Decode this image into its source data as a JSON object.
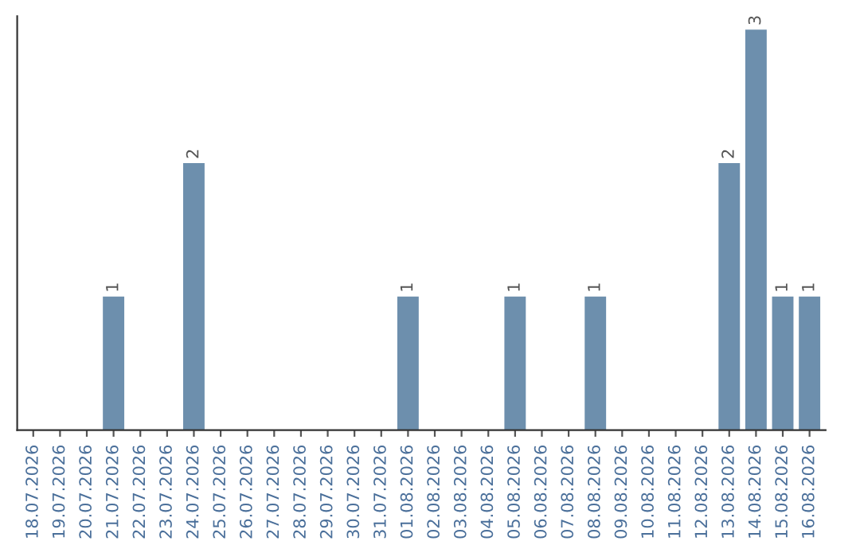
{
  "chart_data": {
    "type": "bar",
    "categories": [
      "18.07.2026",
      "19.07.2026",
      "20.07.2026",
      "21.07.2026",
      "22.07.2026",
      "23.07.2026",
      "24.07.2026",
      "25.07.2026",
      "26.07.2026",
      "27.07.2026",
      "28.07.2026",
      "29.07.2026",
      "30.07.2026",
      "31.07.2026",
      "01.08.2026",
      "02.08.2026",
      "03.08.2026",
      "04.08.2026",
      "05.08.2026",
      "06.08.2026",
      "07.08.2026",
      "08.08.2026",
      "09.08.2026",
      "10.08.2026",
      "11.08.2026",
      "12.08.2026",
      "13.08.2026",
      "14.08.2026",
      "15.08.2026",
      "16.08.2026"
    ],
    "values": [
      0,
      0,
      0,
      1,
      0,
      0,
      2,
      0,
      0,
      0,
      0,
      0,
      0,
      0,
      1,
      0,
      0,
      0,
      1,
      0,
      0,
      1,
      0,
      0,
      0,
      0,
      2,
      3,
      1,
      1
    ],
    "value_labels": [
      null,
      null,
      null,
      "1",
      null,
      null,
      "2",
      null,
      null,
      null,
      null,
      null,
      null,
      null,
      "1",
      null,
      null,
      null,
      "1",
      null,
      null,
      "1",
      null,
      null,
      null,
      null,
      "2",
      "3",
      "1",
      "1"
    ],
    "color": "#6d8fad",
    "ylim": [
      0,
      3.1
    ],
    "tick_labels": "x",
    "grid": false,
    "legend": false
  }
}
